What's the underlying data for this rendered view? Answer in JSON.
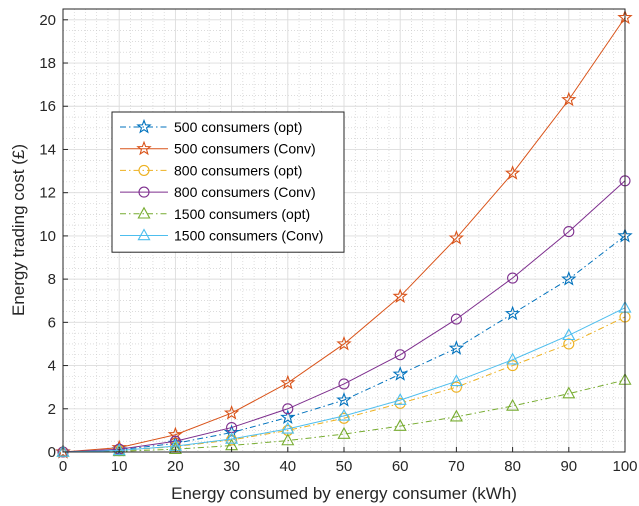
{
  "chart_data": {
    "type": "line",
    "title": "",
    "xlabel": "Energy consumed by energy consumer (kWh)",
    "ylabel": "Energy trading cost (£)",
    "xlim": [
      0,
      100
    ],
    "ylim": [
      0,
      20.5
    ],
    "x_ticks": [
      0,
      10,
      20,
      30,
      40,
      50,
      60,
      70,
      80,
      90,
      100
    ],
    "y_ticks": [
      0,
      2,
      4,
      6,
      8,
      10,
      12,
      14,
      16,
      18,
      20
    ],
    "x_tick_labels": [
      "0",
      "10",
      "20",
      "30",
      "40",
      "50",
      "60",
      "70",
      "80",
      "90",
      "100"
    ],
    "y_tick_labels": [
      "0",
      "2",
      "4",
      "6",
      "8",
      "10",
      "12",
      "14",
      "16",
      "18",
      "20"
    ],
    "grid": true,
    "minor_grid": true,
    "legend_position": "upper-left",
    "x": [
      0,
      10,
      20,
      30,
      40,
      50,
      60,
      70,
      80,
      90,
      100
    ],
    "series": [
      {
        "name": "500 consumers (opt)",
        "color": "#0072BD",
        "marker": "star",
        "dash": "dashdot",
        "values": [
          0,
          0.1,
          0.4,
          0.9,
          1.6,
          2.4,
          3.6,
          4.8,
          6.4,
          8.0,
          10.0
        ]
      },
      {
        "name": "500 consumers (Conv)",
        "color": "#D95319",
        "marker": "star",
        "dash": "solid",
        "values": [
          0,
          0.2,
          0.8,
          1.8,
          3.2,
          5.0,
          7.2,
          9.9,
          12.9,
          16.3,
          20.1
        ]
      },
      {
        "name": "800 consumers (opt)",
        "color": "#EDB120",
        "marker": "circle",
        "dash": "dashdot",
        "values": [
          0,
          0.06,
          0.25,
          0.56,
          1.0,
          1.56,
          2.25,
          3.0,
          4.0,
          5.0,
          6.25
        ]
      },
      {
        "name": "800 consumers (Conv)",
        "color": "#7E2F8E",
        "marker": "circle",
        "dash": "solid",
        "values": [
          0,
          0.13,
          0.5,
          1.13,
          2.0,
          3.15,
          4.5,
          6.15,
          8.05,
          10.2,
          12.55
        ]
      },
      {
        "name": "1500 consumers (opt)",
        "color": "#77AC30",
        "marker": "triangle",
        "dash": "dashdot",
        "values": [
          0,
          0.03,
          0.13,
          0.3,
          0.53,
          0.83,
          1.2,
          1.63,
          2.13,
          2.7,
          3.33
        ]
      },
      {
        "name": "1500 consumers (Conv)",
        "color": "#4DBEEE",
        "marker": "triangle",
        "dash": "solid",
        "values": [
          0,
          0.07,
          0.27,
          0.6,
          1.07,
          1.67,
          2.4,
          3.27,
          4.27,
          5.4,
          6.67
        ]
      }
    ]
  }
}
